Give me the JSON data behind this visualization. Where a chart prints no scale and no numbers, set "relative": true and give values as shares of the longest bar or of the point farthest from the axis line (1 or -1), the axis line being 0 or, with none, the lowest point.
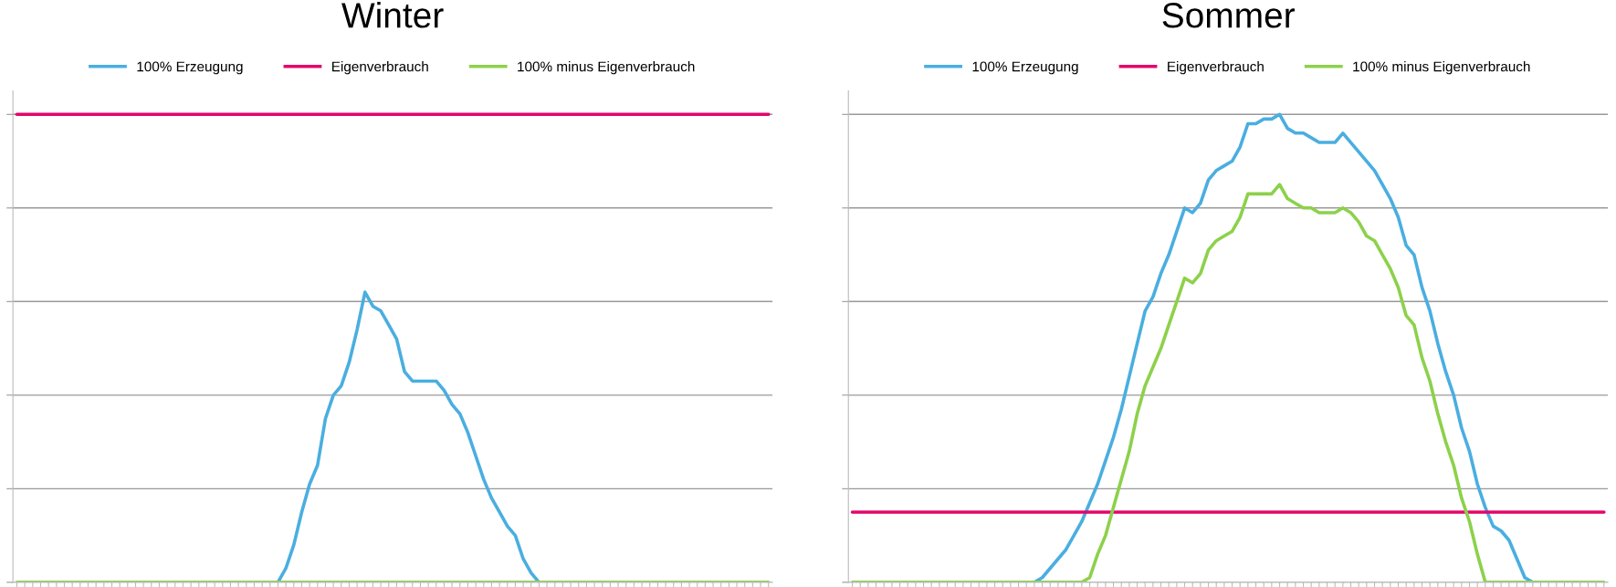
{
  "chart_data": [
    {
      "type": "line",
      "title": "Winter",
      "relative": true,
      "grid": "y",
      "legend": "top",
      "marker": "none",
      "line_style": "solid",
      "categories": [
        null,
        null,
        null,
        null,
        null,
        null,
        null,
        null,
        null,
        null,
        null,
        null,
        null,
        null,
        null,
        null,
        null,
        null,
        null,
        null,
        null,
        null,
        null,
        null,
        null,
        null,
        null,
        null,
        null,
        null,
        null,
        null,
        null,
        null,
        null,
        null,
        null,
        null,
        null,
        null,
        null,
        null,
        null,
        null,
        null,
        null,
        null,
        null,
        null,
        null,
        null,
        null,
        null,
        null,
        null,
        null,
        null,
        null,
        null,
        null,
        null,
        null,
        null,
        null,
        null,
        null,
        null,
        null,
        null,
        null,
        null,
        null,
        null,
        null,
        null,
        null,
        null,
        null,
        null,
        null,
        null,
        null,
        null,
        null,
        null,
        null,
        null,
        null,
        null,
        null,
        null,
        null,
        null,
        null,
        null,
        null
      ],
      "series": [
        {
          "name": "100% Erzeugung",
          "color": "#4aaee0",
          "values": [
            null,
            null,
            null,
            null,
            null,
            null,
            null,
            null,
            null,
            null,
            null,
            null,
            null,
            null,
            null,
            null,
            null,
            null,
            null,
            null,
            null,
            null,
            null,
            null,
            null,
            null,
            null,
            null,
            null,
            null,
            null,
            null,
            null,
            0,
            0.03,
            0.08,
            0.15,
            0.21,
            0.25,
            0.35,
            0.4,
            0.42,
            0.47,
            0.54,
            0.62,
            0.59,
            0.58,
            0.55,
            0.52,
            0.45,
            0.43,
            0.43,
            0.43,
            0.43,
            0.41,
            0.38,
            0.36,
            0.32,
            0.27,
            0.22,
            0.18,
            0.15,
            0.12,
            0.1,
            0.05,
            0.02,
            0,
            null,
            null,
            null,
            null,
            null,
            null,
            null,
            null,
            null,
            null,
            null,
            null,
            null,
            null,
            null,
            null,
            null,
            null,
            null,
            null,
            null,
            null,
            null,
            null,
            null,
            null,
            null,
            null,
            null
          ]
        },
        {
          "name": "Eigenverbrauch",
          "color": "#e2066b",
          "values": [
            1,
            1,
            1,
            1,
            1,
            1,
            1,
            1,
            1,
            1,
            1,
            1,
            1,
            1,
            1,
            1,
            1,
            1,
            1,
            1,
            1,
            1,
            1,
            1,
            1,
            1,
            1,
            1,
            1,
            1,
            1,
            1,
            1,
            1,
            1,
            1,
            1,
            1,
            1,
            1,
            1,
            1,
            1,
            1,
            1,
            1,
            1,
            1,
            1,
            1,
            1,
            1,
            1,
            1,
            1,
            1,
            1,
            1,
            1,
            1,
            1,
            1,
            1,
            1,
            1,
            1,
            1,
            1,
            1,
            1,
            1,
            1,
            1,
            1,
            1,
            1,
            1,
            1,
            1,
            1,
            1,
            1,
            1,
            1,
            1,
            1,
            1,
            1,
            1,
            1,
            1,
            1,
            1,
            1,
            1,
            1
          ]
        },
        {
          "name": "100% minus Eigenverbrauch",
          "color": "#8cd14b",
          "values": [
            0,
            0,
            0,
            0,
            0,
            0,
            0,
            0,
            0,
            0,
            0,
            0,
            0,
            0,
            0,
            0,
            0,
            0,
            0,
            0,
            0,
            0,
            0,
            0,
            0,
            0,
            0,
            0,
            0,
            0,
            0,
            0,
            0,
            0,
            0,
            0,
            0,
            0,
            0,
            0,
            0,
            0,
            0,
            0,
            0,
            0,
            0,
            0,
            0,
            0,
            0,
            0,
            0,
            0,
            0,
            0,
            0,
            0,
            0,
            0,
            0,
            0,
            0,
            0,
            0,
            0,
            0,
            0,
            0,
            0,
            0,
            0,
            0,
            0,
            0,
            0,
            0,
            0,
            0,
            0,
            0,
            0,
            0,
            0,
            0,
            0,
            0,
            0,
            0,
            0,
            0,
            0,
            0,
            0,
            0,
            0
          ]
        }
      ]
    },
    {
      "type": "line",
      "title": "Sommer",
      "relative": true,
      "grid": "y",
      "legend": "top",
      "marker": "none",
      "line_style": "solid",
      "categories": [
        null,
        null,
        null,
        null,
        null,
        null,
        null,
        null,
        null,
        null,
        null,
        null,
        null,
        null,
        null,
        null,
        null,
        null,
        null,
        null,
        null,
        null,
        null,
        null,
        null,
        null,
        null,
        null,
        null,
        null,
        null,
        null,
        null,
        null,
        null,
        null,
        null,
        null,
        null,
        null,
        null,
        null,
        null,
        null,
        null,
        null,
        null,
        null,
        null,
        null,
        null,
        null,
        null,
        null,
        null,
        null,
        null,
        null,
        null,
        null,
        null,
        null,
        null,
        null,
        null,
        null,
        null,
        null,
        null,
        null,
        null,
        null,
        null,
        null,
        null,
        null,
        null,
        null,
        null,
        null,
        null,
        null,
        null,
        null,
        null,
        null,
        null,
        null,
        null,
        null,
        null,
        null,
        null,
        null,
        null,
        null
      ],
      "series": [
        {
          "name": "100% Erzeugung",
          "color": "#4aaee0",
          "values": [
            null,
            null,
            null,
            null,
            null,
            null,
            null,
            null,
            null,
            null,
            null,
            null,
            null,
            null,
            null,
            null,
            null,
            null,
            null,
            null,
            null,
            null,
            null,
            0,
            0.01,
            0.03,
            0.05,
            0.07,
            0.1,
            0.13,
            0.17,
            0.21,
            0.26,
            0.31,
            0.37,
            0.44,
            0.51,
            0.58,
            0.61,
            0.66,
            0.7,
            0.75,
            0.8,
            0.79,
            0.81,
            0.86,
            0.88,
            0.89,
            0.9,
            0.93,
            0.98,
            0.98,
            0.99,
            0.99,
            1.0,
            0.97,
            0.96,
            0.96,
            0.95,
            0.94,
            0.94,
            0.94,
            0.96,
            0.94,
            0.92,
            0.9,
            0.88,
            0.85,
            0.82,
            0.78,
            0.72,
            0.7,
            0.63,
            0.58,
            0.51,
            0.45,
            0.4,
            0.33,
            0.28,
            0.21,
            0.16,
            0.12,
            0.11,
            0.09,
            0.05,
            0.01,
            0,
            0,
            null,
            null,
            null,
            null,
            null,
            null,
            null,
            null
          ]
        },
        {
          "name": "Eigenverbrauch",
          "color": "#e2066b",
          "values": [
            0.15,
            0.15,
            0.15,
            0.15,
            0.15,
            0.15,
            0.15,
            0.15,
            0.15,
            0.15,
            0.15,
            0.15,
            0.15,
            0.15,
            0.15,
            0.15,
            0.15,
            0.15,
            0.15,
            0.15,
            0.15,
            0.15,
            0.15,
            0.15,
            0.15,
            0.15,
            0.15,
            0.15,
            0.15,
            0.15,
            0.15,
            0.15,
            0.15,
            0.15,
            0.15,
            0.15,
            0.15,
            0.15,
            0.15,
            0.15,
            0.15,
            0.15,
            0.15,
            0.15,
            0.15,
            0.15,
            0.15,
            0.15,
            0.15,
            0.15,
            0.15,
            0.15,
            0.15,
            0.15,
            0.15,
            0.15,
            0.15,
            0.15,
            0.15,
            0.15,
            0.15,
            0.15,
            0.15,
            0.15,
            0.15,
            0.15,
            0.15,
            0.15,
            0.15,
            0.15,
            0.15,
            0.15,
            0.15,
            0.15,
            0.15,
            0.15,
            0.15,
            0.15,
            0.15,
            0.15,
            0.15,
            0.15,
            0.15,
            0.15,
            0.15,
            0.15,
            0.15,
            0.15,
            0.15,
            0.15,
            0.15,
            0.15,
            0.15,
            0.15,
            0.15,
            0.15
          ]
        },
        {
          "name": "100% minus Eigenverbrauch",
          "color": "#8cd14b",
          "values": [
            0,
            0,
            0,
            0,
            0,
            0,
            0,
            0,
            0,
            0,
            0,
            0,
            0,
            0,
            0,
            0,
            0,
            0,
            0,
            0,
            0,
            0,
            0,
            0,
            0,
            0,
            0,
            0,
            0,
            0,
            0.01,
            0.06,
            0.1,
            0.16,
            0.22,
            0.28,
            0.36,
            0.42,
            0.46,
            0.5,
            0.55,
            0.6,
            0.65,
            0.64,
            0.66,
            0.71,
            0.73,
            0.74,
            0.75,
            0.78,
            0.83,
            0.83,
            0.83,
            0.83,
            0.85,
            0.82,
            0.81,
            0.8,
            0.8,
            0.79,
            0.79,
            0.79,
            0.8,
            0.79,
            0.77,
            0.74,
            0.73,
            0.7,
            0.67,
            0.63,
            0.57,
            0.55,
            0.48,
            0.43,
            0.36,
            0.3,
            0.25,
            0.18,
            0.13,
            0.06,
            0.0,
            0,
            0,
            0,
            0,
            0,
            0,
            0,
            0,
            0,
            0,
            0,
            0,
            0,
            0,
            0
          ]
        }
      ]
    }
  ]
}
